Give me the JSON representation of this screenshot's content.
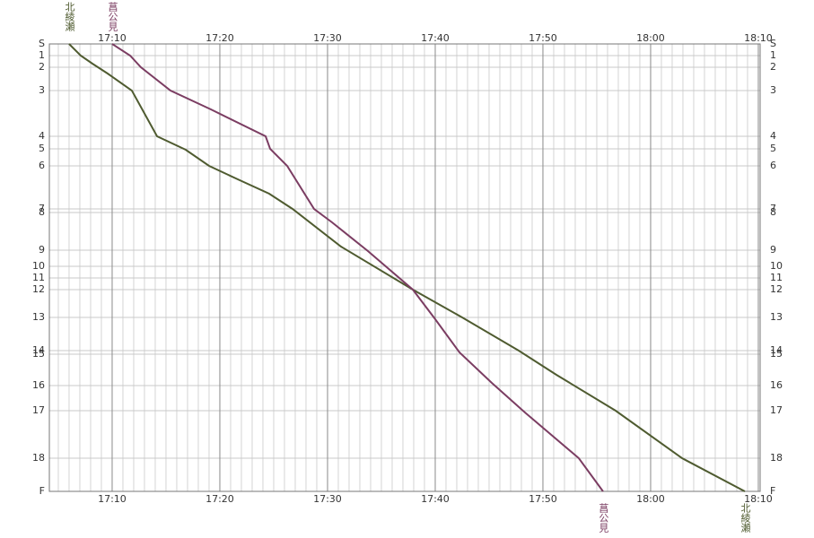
{
  "chart_data": {
    "type": "line",
    "xlim": [
      4.17,
      70.17
    ],
    "ylim": [
      0,
      499
    ],
    "xticks": [
      {
        "value": 10,
        "label": "17:10"
      },
      {
        "value": 20,
        "label": "17:20"
      },
      {
        "value": 30,
        "label": "17:30"
      },
      {
        "value": 40,
        "label": "17:40"
      },
      {
        "value": 50,
        "label": "17:50"
      },
      {
        "value": 60,
        "label": "18:00"
      },
      {
        "value": 70,
        "label": "18:10"
      }
    ],
    "yticks": [
      {
        "value": 0,
        "label": "S"
      },
      13,
      26,
      52,
      103,
      117,
      136,
      184,
      188,
      230,
      248,
      261,
      274,
      305,
      342,
      346,
      381,
      409,
      462,
      {
        "value": 499,
        "label": "F"
      }
    ],
    "ytick_labels": [
      "S",
      "1",
      "2",
      "3",
      "4",
      "5",
      "6",
      "7",
      "8",
      "9",
      "10",
      "11",
      "12",
      "13",
      "14",
      "15",
      "16",
      "17",
      "18",
      "F"
    ],
    "grid": true,
    "series": [
      {
        "color": "#4f5b30",
        "x": [
          6.0,
          7.08,
          8.17,
          9.58,
          11.83,
          14.17,
          16.83,
          19,
          21.67,
          24.58,
          26.75,
          31.25,
          37.92,
          42.5,
          47.75,
          51.25,
          56.75,
          62.92,
          68.75
        ],
        "values": [
          0,
          13,
          22,
          33,
          52,
          103,
          118,
          136,
          151,
          167,
          184,
          226,
          274,
          305,
          342,
          369,
          409,
          462,
          499
        ]
      },
      {
        "color": "#7b3d62",
        "x": [
          10,
          11.67,
          12.67,
          15.42,
          19.17,
          24.25,
          24.67,
          26.25,
          28.75,
          30.42,
          33.75,
          37.92,
          40,
          42.25,
          45.25,
          48.33,
          53.33,
          55.58
        ],
        "values": [
          0,
          13,
          26,
          52,
          73,
          103,
          117,
          136,
          184,
          199,
          231,
          274,
          307,
          344,
          378,
          411,
          462,
          499
        ]
      }
    ],
    "annotations": [
      {
        "text": "北綾瀬",
        "x": 6.0,
        "y": 0,
        "color": "#4f5b30"
      },
      {
        "text": "菖公見",
        "x": 10,
        "y": 0,
        "color": "#7b3d62"
      },
      {
        "text": "菖公見",
        "x": 55.58,
        "y": 499,
        "color": "#7b3d62"
      },
      {
        "text": "北綾瀬",
        "x": 68.75,
        "y": 499,
        "color": "#4f5b30"
      }
    ]
  }
}
